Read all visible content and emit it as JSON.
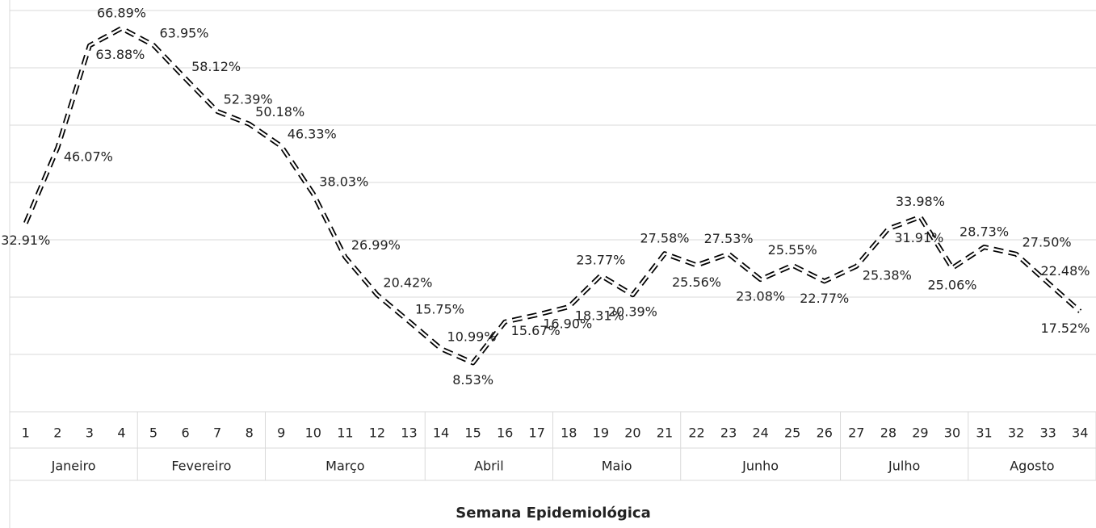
{
  "chart_data": {
    "type": "line",
    "x_label": "Semana Epidemiológica",
    "categories": [
      "1",
      "2",
      "3",
      "4",
      "5",
      "6",
      "7",
      "8",
      "9",
      "10",
      "11",
      "12",
      "13",
      "14",
      "15",
      "16",
      "17",
      "18",
      "19",
      "20",
      "21",
      "22",
      "23",
      "24",
      "25",
      "26",
      "27",
      "28",
      "29",
      "30",
      "31",
      "32",
      "33",
      "34"
    ],
    "groups": [
      {
        "label": "Janeiro",
        "size": 4
      },
      {
        "label": "Fevereiro",
        "size": 4
      },
      {
        "label": "Março",
        "size": 5
      },
      {
        "label": "Abril",
        "size": 4
      },
      {
        "label": "Maio",
        "size": 4
      },
      {
        "label": "Junho",
        "size": 5
      },
      {
        "label": "Julho",
        "size": 4
      },
      {
        "label": "Agosto",
        "size": 4
      }
    ],
    "values": [
      32.91,
      46.07,
      63.88,
      66.89,
      63.95,
      58.12,
      52.39,
      50.18,
      46.33,
      38.03,
      26.99,
      20.42,
      15.75,
      10.99,
      8.53,
      15.67,
      16.9,
      18.31,
      23.77,
      20.39,
      27.58,
      25.56,
      27.53,
      23.08,
      25.55,
      22.77,
      25.38,
      31.91,
      33.98,
      25.06,
      28.73,
      27.5,
      22.48,
      17.52
    ],
    "value_labels": [
      "32.91%",
      "46.07%",
      "63.88%",
      "66.89%",
      "63.95%",
      "58.12%",
      "52.39%",
      "50.18%",
      "46.33%",
      "38.03%",
      "26.99%",
      "20.42%",
      "15.75%",
      "10.99%",
      "8.53%",
      "15.67%",
      "16.90%",
      "18.31%",
      "23.77%",
      "20.39%",
      "27.58%",
      "25.56%",
      "27.53%",
      "23.08%",
      "25.55%",
      "22.77%",
      "25.38%",
      "31.91%",
      "33.98%",
      "25.06%",
      "28.73%",
      "27.50%",
      "22.48%",
      "17.52%"
    ],
    "color": "#000000",
    "ylim": [
      0,
      70
    ],
    "yticks": [
      0,
      10,
      20,
      30,
      40,
      50,
      60,
      70
    ],
    "grid": true
  }
}
